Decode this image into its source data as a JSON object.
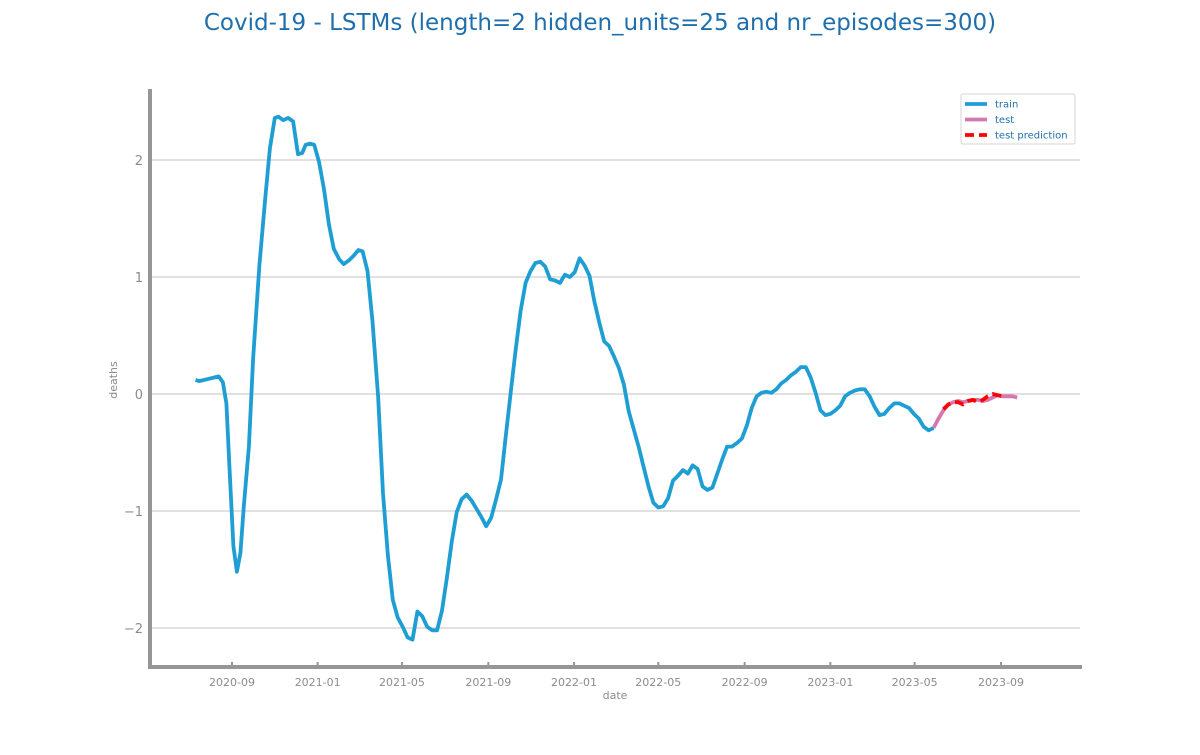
{
  "chart_data": {
    "type": "line",
    "title": "Covid-19 - LSTMs (length=2 hidden_units=25 and nr_episodes=300)",
    "xlabel": "date",
    "ylabel": "deaths",
    "xlim": [
      "2020-06-01",
      "2024-01-01"
    ],
    "ylim": [
      -2.33,
      2.6
    ],
    "yticks": [
      -2,
      -1,
      0,
      1,
      2
    ],
    "ytick_labels": [
      "−2",
      "−1",
      "0",
      "1",
      "2"
    ],
    "xticks": [
      "2020-09-01",
      "2021-01-01",
      "2021-05-01",
      "2021-09-01",
      "2022-01-01",
      "2022-05-01",
      "2022-09-01",
      "2023-01-01",
      "2023-05-01",
      "2023-09-01"
    ],
    "xtick_labels": [
      "2020-09",
      "2021-01",
      "2021-05",
      "2021-09",
      "2022-01",
      "2022-05",
      "2022-09",
      "2023-01",
      "2023-05",
      "2023-09"
    ],
    "grid": "horizontal",
    "legend_position": "top-right",
    "series": [
      {
        "name": "train",
        "color": "#1f9ed4",
        "style": "solid",
        "points": [
          [
            "2020-07-11",
            0.12
          ],
          [
            "2020-07-16",
            0.11
          ],
          [
            "2020-07-23",
            0.12
          ],
          [
            "2020-07-30",
            0.13
          ],
          [
            "2020-08-06",
            0.14
          ],
          [
            "2020-08-13",
            0.15
          ],
          [
            "2020-08-19",
            0.1
          ],
          [
            "2020-08-24",
            -0.08
          ],
          [
            "2020-08-28",
            -0.58
          ],
          [
            "2020-09-03",
            -1.3
          ],
          [
            "2020-09-08",
            -1.52
          ],
          [
            "2020-09-13",
            -1.36
          ],
          [
            "2020-09-18",
            -0.95
          ],
          [
            "2020-09-25",
            -0.45
          ],
          [
            "2020-10-01",
            0.3
          ],
          [
            "2020-10-10",
            1.1
          ],
          [
            "2020-10-18",
            1.65
          ],
          [
            "2020-10-25",
            2.1
          ],
          [
            "2020-11-01",
            2.36
          ],
          [
            "2020-11-06",
            2.37
          ],
          [
            "2020-11-13",
            2.34
          ],
          [
            "2020-11-20",
            2.36
          ],
          [
            "2020-11-27",
            2.33
          ],
          [
            "2020-12-04",
            2.05
          ],
          [
            "2020-12-10",
            2.06
          ],
          [
            "2020-12-15",
            2.13
          ],
          [
            "2020-12-21",
            2.14
          ],
          [
            "2020-12-27",
            2.13
          ],
          [
            "2021-01-03",
            1.98
          ],
          [
            "2021-01-10",
            1.75
          ],
          [
            "2021-01-17",
            1.45
          ],
          [
            "2021-01-24",
            1.24
          ],
          [
            "2021-02-01",
            1.15
          ],
          [
            "2021-02-07",
            1.11
          ],
          [
            "2021-02-14",
            1.14
          ],
          [
            "2021-02-21",
            1.18
          ],
          [
            "2021-02-28",
            1.23
          ],
          [
            "2021-03-06",
            1.22
          ],
          [
            "2021-03-13",
            1.05
          ],
          [
            "2021-03-20",
            0.62
          ],
          [
            "2021-03-28",
            -0.02
          ],
          [
            "2021-04-04",
            -0.85
          ],
          [
            "2021-04-11",
            -1.38
          ],
          [
            "2021-04-18",
            -1.76
          ],
          [
            "2021-04-25",
            -1.91
          ],
          [
            "2021-05-02",
            -1.99
          ],
          [
            "2021-05-09",
            -2.08
          ],
          [
            "2021-05-16",
            -2.1
          ],
          [
            "2021-05-23",
            -1.86
          ],
          [
            "2021-05-30",
            -1.9
          ],
          [
            "2021-06-06",
            -1.99
          ],
          [
            "2021-06-13",
            -2.02
          ],
          [
            "2021-06-20",
            -2.02
          ],
          [
            "2021-06-27",
            -1.85
          ],
          [
            "2021-07-04",
            -1.57
          ],
          [
            "2021-07-11",
            -1.26
          ],
          [
            "2021-07-18",
            -1.01
          ],
          [
            "2021-07-25",
            -0.9
          ],
          [
            "2021-08-01",
            -0.86
          ],
          [
            "2021-08-08",
            -0.91
          ],
          [
            "2021-08-15",
            -0.98
          ],
          [
            "2021-08-22",
            -1.05
          ],
          [
            "2021-08-29",
            -1.13
          ],
          [
            "2021-09-05",
            -1.06
          ],
          [
            "2021-09-12",
            -0.9
          ],
          [
            "2021-09-19",
            -0.73
          ],
          [
            "2021-09-26",
            -0.35
          ],
          [
            "2021-10-03",
            0.02
          ],
          [
            "2021-10-10",
            0.38
          ],
          [
            "2021-10-17",
            0.71
          ],
          [
            "2021-10-24",
            0.95
          ],
          [
            "2021-10-31",
            1.05
          ],
          [
            "2021-11-07",
            1.12
          ],
          [
            "2021-11-14",
            1.13
          ],
          [
            "2021-11-21",
            1.09
          ],
          [
            "2021-11-28",
            0.98
          ],
          [
            "2021-12-05",
            0.97
          ],
          [
            "2021-12-12",
            0.95
          ],
          [
            "2021-12-19",
            1.02
          ],
          [
            "2021-12-26",
            1.0
          ],
          [
            "2022-01-02",
            1.04
          ],
          [
            "2022-01-09",
            1.16
          ],
          [
            "2022-01-16",
            1.1
          ],
          [
            "2022-01-23",
            1.01
          ],
          [
            "2022-01-30",
            0.79
          ],
          [
            "2022-02-06",
            0.61
          ],
          [
            "2022-02-13",
            0.45
          ],
          [
            "2022-02-20",
            0.41
          ],
          [
            "2022-02-27",
            0.32
          ],
          [
            "2022-03-06",
            0.22
          ],
          [
            "2022-03-13",
            0.08
          ],
          [
            "2022-03-20",
            -0.15
          ],
          [
            "2022-03-27",
            -0.3
          ],
          [
            "2022-04-03",
            -0.45
          ],
          [
            "2022-04-10",
            -0.62
          ],
          [
            "2022-04-17",
            -0.79
          ],
          [
            "2022-04-24",
            -0.93
          ],
          [
            "2022-05-01",
            -0.97
          ],
          [
            "2022-05-08",
            -0.96
          ],
          [
            "2022-05-15",
            -0.89
          ],
          [
            "2022-05-22",
            -0.74
          ],
          [
            "2022-05-29",
            -0.7
          ],
          [
            "2022-06-05",
            -0.65
          ],
          [
            "2022-06-12",
            -0.68
          ],
          [
            "2022-06-19",
            -0.61
          ],
          [
            "2022-06-26",
            -0.64
          ],
          [
            "2022-07-03",
            -0.79
          ],
          [
            "2022-07-10",
            -0.82
          ],
          [
            "2022-07-17",
            -0.8
          ],
          [
            "2022-07-24",
            -0.68
          ],
          [
            "2022-07-31",
            -0.56
          ],
          [
            "2022-08-07",
            -0.45
          ],
          [
            "2022-08-14",
            -0.45
          ],
          [
            "2022-08-21",
            -0.42
          ],
          [
            "2022-08-28",
            -0.38
          ],
          [
            "2022-09-04",
            -0.27
          ],
          [
            "2022-09-11",
            -0.12
          ],
          [
            "2022-09-18",
            -0.02
          ],
          [
            "2022-09-25",
            0.01
          ],
          [
            "2022-10-02",
            0.02
          ],
          [
            "2022-10-09",
            0.01
          ],
          [
            "2022-10-16",
            0.04
          ],
          [
            "2022-10-23",
            0.09
          ],
          [
            "2022-10-30",
            0.12
          ],
          [
            "2022-11-06",
            0.16
          ],
          [
            "2022-11-13",
            0.19
          ],
          [
            "2022-11-20",
            0.23
          ],
          [
            "2022-11-27",
            0.23
          ],
          [
            "2022-12-04",
            0.14
          ],
          [
            "2022-12-11",
            0.01
          ],
          [
            "2022-12-18",
            -0.14
          ],
          [
            "2022-12-25",
            -0.18
          ],
          [
            "2023-01-01",
            -0.17
          ],
          [
            "2023-01-08",
            -0.14
          ],
          [
            "2023-01-15",
            -0.1
          ],
          [
            "2023-01-22",
            -0.02
          ],
          [
            "2023-01-29",
            0.01
          ],
          [
            "2023-02-05",
            0.03
          ],
          [
            "2023-02-12",
            0.04
          ],
          [
            "2023-02-19",
            0.04
          ],
          [
            "2023-02-26",
            -0.02
          ],
          [
            "2023-03-05",
            -0.11
          ],
          [
            "2023-03-12",
            -0.18
          ],
          [
            "2023-03-19",
            -0.17
          ],
          [
            "2023-03-26",
            -0.12
          ],
          [
            "2023-04-02",
            -0.08
          ],
          [
            "2023-04-09",
            -0.08
          ],
          [
            "2023-04-16",
            -0.1
          ],
          [
            "2023-04-23",
            -0.12
          ],
          [
            "2023-04-30",
            -0.17
          ],
          [
            "2023-05-07",
            -0.21
          ],
          [
            "2023-05-14",
            -0.28
          ],
          [
            "2023-05-21",
            -0.31
          ],
          [
            "2023-05-28",
            -0.29
          ]
        ]
      },
      {
        "name": "test",
        "color": "#d379b0",
        "style": "solid",
        "points": [
          [
            "2023-05-28",
            -0.29
          ],
          [
            "2023-06-04",
            -0.21
          ],
          [
            "2023-06-11",
            -0.14
          ],
          [
            "2023-06-18",
            -0.09
          ],
          [
            "2023-06-25",
            -0.07
          ],
          [
            "2023-07-02",
            -0.06
          ],
          [
            "2023-07-09",
            -0.07
          ],
          [
            "2023-07-16",
            -0.06
          ],
          [
            "2023-07-23",
            -0.05
          ],
          [
            "2023-07-30",
            -0.05
          ],
          [
            "2023-08-06",
            -0.06
          ],
          [
            "2023-08-13",
            -0.05
          ],
          [
            "2023-08-20",
            -0.03
          ],
          [
            "2023-08-27",
            -0.01
          ],
          [
            "2023-09-03",
            -0.02
          ],
          [
            "2023-09-10",
            -0.02
          ],
          [
            "2023-09-17",
            -0.02
          ],
          [
            "2023-09-24",
            -0.03
          ]
        ]
      },
      {
        "name": "test prediction",
        "color": "#ff0000",
        "style": "dashed",
        "points": [
          [
            "2023-06-11",
            -0.13
          ],
          [
            "2023-06-18",
            -0.09
          ],
          [
            "2023-06-25",
            -0.07
          ],
          [
            "2023-07-02",
            -0.07
          ],
          [
            "2023-07-09",
            -0.09
          ],
          [
            "2023-07-16",
            -0.06
          ],
          [
            "2023-07-23",
            -0.05
          ],
          [
            "2023-07-30",
            -0.07
          ],
          [
            "2023-08-06",
            -0.05
          ],
          [
            "2023-08-13",
            -0.02
          ],
          [
            "2023-08-20",
            0.0
          ],
          [
            "2023-08-27",
            -0.01
          ],
          [
            "2023-09-03",
            -0.02
          ]
        ]
      }
    ]
  }
}
